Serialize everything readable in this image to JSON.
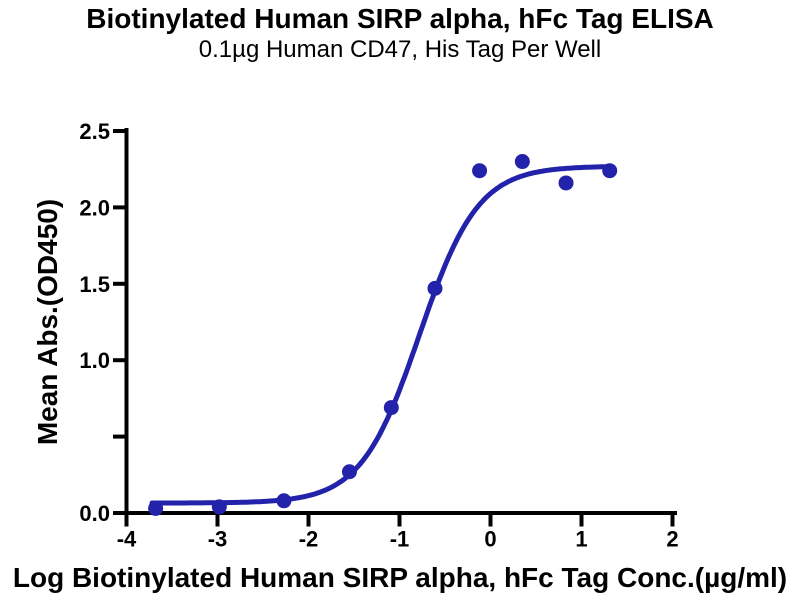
{
  "figure": {
    "title": "Biotinylated Human SIRP alpha, hFc Tag ELISA",
    "subtitle": "0.1µg Human CD47, His Tag Per Well"
  },
  "chart_data": {
    "type": "scatter",
    "title": "Biotinylated Human SIRP alpha, hFc Tag ELISA",
    "subtitle": "0.1µg Human CD47, His Tag Per Well",
    "xlabel": "Log Biotinylated Human SIRP alpha, hFc Tag Conc.(µg/ml)",
    "ylabel": "Mean Abs.(OD450)",
    "xlim": [
      -4,
      2
    ],
    "ylim": [
      0,
      2.5
    ],
    "grid": false,
    "legend": false,
    "x_ticks": [
      {
        "value": -4,
        "label": "-4"
      },
      {
        "value": -3,
        "label": "-3"
      },
      {
        "value": -2,
        "label": "-2"
      },
      {
        "value": -1,
        "label": "-1"
      },
      {
        "value": 0,
        "label": "0"
      },
      {
        "value": 1,
        "label": "1"
      },
      {
        "value": 2,
        "label": "2"
      }
    ],
    "y_ticks": [
      {
        "value": 0.0,
        "label": "0.0"
      },
      {
        "value": 0.5,
        "label": ""
      },
      {
        "value": 1.0,
        "label": "1.0"
      },
      {
        "value": 1.5,
        "label": "1.5"
      },
      {
        "value": 2.0,
        "label": "2.0"
      },
      {
        "value": 2.5,
        "label": "2.5"
      }
    ],
    "series": [
      {
        "name": "Biotinylated Human SIRP alpha, hFc Tag",
        "marker": "circle",
        "color": "#2222AA",
        "points": [
          {
            "x": -3.68,
            "y": 0.03
          },
          {
            "x": -2.98,
            "y": 0.04
          },
          {
            "x": -2.27,
            "y": 0.08
          },
          {
            "x": -1.55,
            "y": 0.27
          },
          {
            "x": -1.09,
            "y": 0.69
          },
          {
            "x": -0.61,
            "y": 1.47
          },
          {
            "x": -0.12,
            "y": 2.24
          },
          {
            "x": 0.35,
            "y": 2.3
          },
          {
            "x": 0.83,
            "y": 2.16
          },
          {
            "x": 1.31,
            "y": 2.24
          }
        ]
      }
    ],
    "fit_curve": {
      "model": "4PL",
      "bottom": 0.065,
      "top": 2.27,
      "log_ec50": -0.78,
      "hill_slope": 1.35,
      "x_start": -3.72,
      "x_end": 1.31,
      "color": "#2222AA"
    },
    "colors": {
      "series": "#2222AA",
      "axis": "#000000",
      "background": "#FFFFFF"
    }
  }
}
